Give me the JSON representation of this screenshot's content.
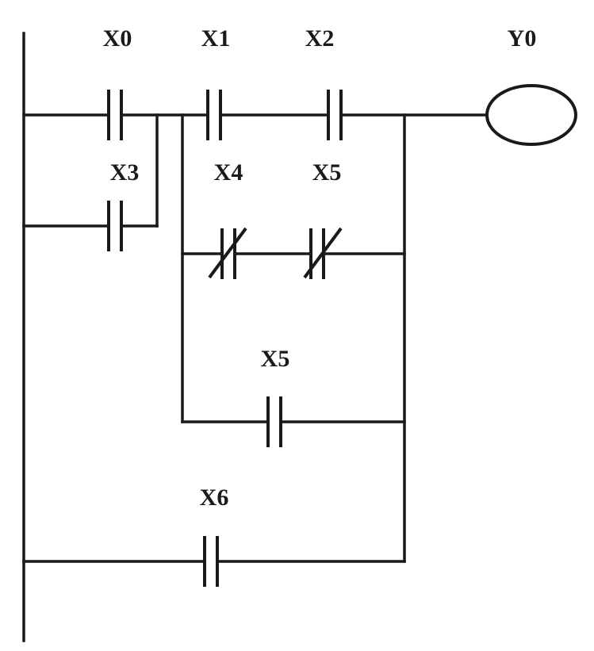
{
  "diagram": {
    "type": "ladder-logic",
    "contacts": [
      {
        "id": "x0",
        "label": "X0",
        "kind": "normally-open"
      },
      {
        "id": "x1",
        "label": "X1",
        "kind": "normally-open"
      },
      {
        "id": "x2",
        "label": "X2",
        "kind": "normally-open"
      },
      {
        "id": "x3",
        "label": "X3",
        "kind": "normally-open"
      },
      {
        "id": "x4",
        "label": "X4",
        "kind": "normally-closed"
      },
      {
        "id": "x5-nc",
        "label": "X5",
        "kind": "normally-closed"
      },
      {
        "id": "x5-no",
        "label": "X5",
        "kind": "normally-open"
      },
      {
        "id": "x6",
        "label": "X6",
        "kind": "normally-open"
      }
    ],
    "coil": {
      "id": "y0",
      "label": "Y0"
    }
  }
}
